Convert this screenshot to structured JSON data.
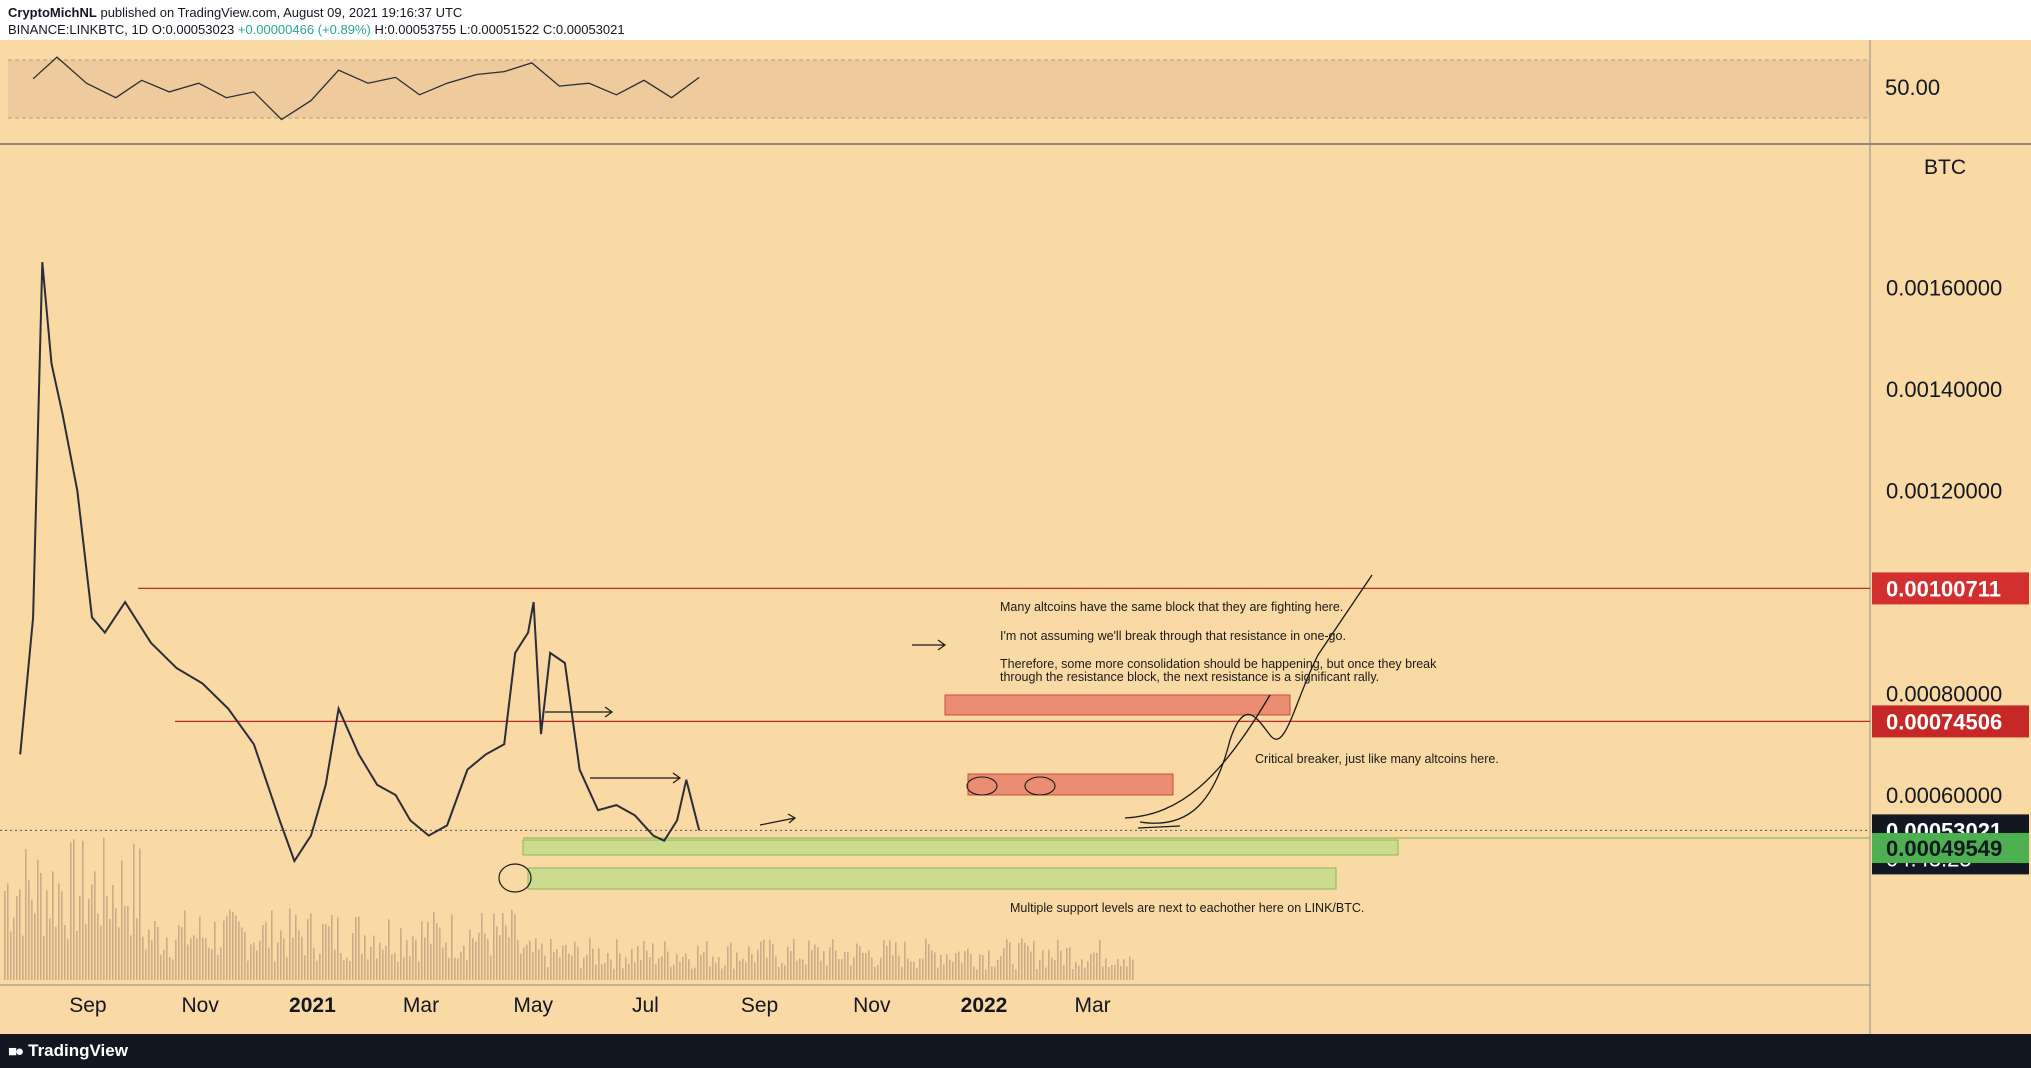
{
  "header": {
    "publisher": "CryptoMichNL",
    "published_text": "published on TradingView.com, August 09, 2021 19:16:37 UTC",
    "symbol": "BINANCE:LINKBTC, 1D",
    "open": "O:0.00053023",
    "change": "+0.00000466 (+0.89%)",
    "high": "H:0.00053755",
    "low": "L:0.00051522",
    "close": "C:0.00053021"
  },
  "footer": {
    "brand": "TradingView",
    "logo_icon": "tradingview-logo-icon"
  },
  "colors": {
    "background": "#f9d9a4",
    "price_line": "#2a2e39",
    "resistance": "#c62828",
    "support_fill": "#c6dc8c",
    "resistance_fill": "#e8806a",
    "green_label": "#4caf50",
    "red_label": "#d32f2f"
  },
  "chart_data": [
    {
      "type": "line",
      "panel": "rsi",
      "y_tick_labels": [
        "50.00"
      ],
      "band": [
        30,
        70
      ],
      "x": [
        "2020-08-12",
        "2020-08-25",
        "2020-09-10",
        "2020-09-26",
        "2020-10-10",
        "2020-10-25",
        "2020-11-10",
        "2020-11-25",
        "2020-12-10",
        "2020-12-25",
        "2021-01-10",
        "2021-01-25",
        "2021-02-10",
        "2021-02-25",
        "2021-03-10",
        "2021-03-25",
        "2021-04-10",
        "2021-04-25",
        "2021-05-10",
        "2021-05-25",
        "2021-06-10",
        "2021-06-25",
        "2021-07-10",
        "2021-07-25",
        "2021-08-09"
      ],
      "values": [
        57,
        72,
        54,
        44,
        56,
        48,
        54,
        44,
        48,
        29,
        42,
        63,
        54,
        58,
        46,
        54,
        60,
        62,
        68,
        52,
        54,
        46,
        56,
        44,
        58
      ]
    },
    {
      "type": "line",
      "panel": "price",
      "unit": "BTC",
      "y_tick_labels": [
        "0.00160000",
        "0.00140000",
        "0.00120000",
        "0.00080000",
        "0.00060000"
      ],
      "x_tick_labels": [
        "Sep",
        "Nov",
        "2021",
        "Mar",
        "May",
        "Jul",
        "Sep",
        "Nov",
        "2022",
        "Mar"
      ],
      "ylim": [
        0.0003,
        0.0019
      ],
      "series": [
        {
          "x": [
            "2020-08-05",
            "2020-08-12",
            "2020-08-17",
            "2020-08-22",
            "2020-08-28",
            "2020-09-05",
            "2020-09-13",
            "2020-09-20",
            "2020-10-01",
            "2020-10-15",
            "2020-10-29",
            "2020-11-12",
            "2020-11-26",
            "2020-12-10",
            "2020-12-24",
            "2021-01-01",
            "2021-01-10",
            "2021-01-18",
            "2021-01-25",
            "2021-02-05",
            "2021-02-15",
            "2021-02-25",
            "2021-03-05",
            "2021-03-15",
            "2021-03-25",
            "2021-04-05",
            "2021-04-15",
            "2021-04-25",
            "2021-05-01",
            "2021-05-08",
            "2021-05-11",
            "2021-05-15",
            "2021-05-20",
            "2021-05-28",
            "2021-06-05",
            "2021-06-15",
            "2021-06-25",
            "2021-07-05",
            "2021-07-15",
            "2021-07-21",
            "2021-07-28",
            "2021-08-02",
            "2021-08-09"
          ],
          "values": [
            0.00068,
            0.00095,
            0.00165,
            0.00145,
            0.00135,
            0.0012,
            0.00095,
            0.00092,
            0.00098,
            0.0009,
            0.00085,
            0.00082,
            0.00077,
            0.0007,
            0.00055,
            0.00047,
            0.00052,
            0.00062,
            0.00077,
            0.00068,
            0.00062,
            0.0006,
            0.00055,
            0.00052,
            0.00054,
            0.00065,
            0.00068,
            0.0007,
            0.00088,
            0.00092,
            0.00098,
            0.00072,
            0.00088,
            0.00086,
            0.00065,
            0.00057,
            0.00058,
            0.00056,
            0.00052,
            0.00051,
            0.00055,
            0.00063,
            0.00053021
          ]
        }
      ],
      "levels": [
        {
          "value": 0.00100711,
          "label": "0.00100711",
          "kind": "resistance"
        },
        {
          "value": 0.00074506,
          "label": "0.00074506",
          "kind": "resistance"
        },
        {
          "value": 0.00053021,
          "label": "0.00053021",
          "countdown": "04:43:25",
          "kind": "last-price"
        },
        {
          "value": 0.00049549,
          "label": "0.00049549",
          "kind": "support"
        }
      ],
      "annotations": [
        "Many altcoins have the same block that they are fighting here.",
        "I'm not assuming we'll break through that resistance in one-go.",
        "Therefore, some more consolidation should be happening, but once they break",
        "through the resistance block, the next resistance is a significant rally.",
        "Critical breaker, just like many altcoins here.",
        "Multiple support levels are next to eachother here on LINK/BTC."
      ]
    }
  ]
}
